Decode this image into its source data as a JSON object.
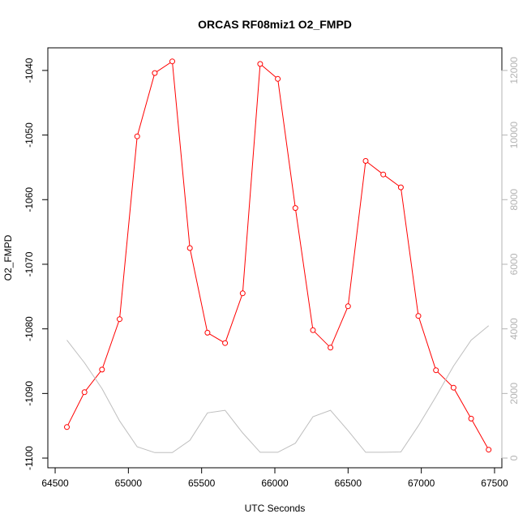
{
  "chart_data": {
    "type": "line",
    "title": "ORCAS RF08miz1 O2_FMPD",
    "xlabel": "UTC Seconds",
    "ylabel": "O2_FMPD",
    "y2label": "",
    "xlim": [
      64450,
      67550
    ],
    "ylim": [
      -1101.5,
      -1036.5
    ],
    "y2lim": [
      -300,
      12700
    ],
    "xticks": [
      64500,
      65000,
      65500,
      66000,
      66500,
      67000,
      67500
    ],
    "xtick_labels": [
      "64500",
      "65000",
      "65500",
      "66000",
      "66500",
      "67000",
      "67500"
    ],
    "yticks": [
      -1100,
      -1090,
      -1080,
      -1070,
      -1060,
      -1050,
      -1040
    ],
    "ytick_labels": [
      "-1100",
      "-1090",
      "-1080",
      "-1070",
      "-1060",
      "-1050",
      "-1040"
    ],
    "y2ticks": [
      0,
      2000,
      4000,
      6000,
      8000,
      10000,
      12000
    ],
    "y2tick_labels": [
      "0",
      "2000",
      "4000",
      "6000",
      "8000",
      "10000",
      "12000"
    ],
    "grid": false,
    "legend": "none",
    "series": [
      {
        "axis": "left",
        "color": "#ff0000",
        "marker": "open-circle",
        "x": [
          64580,
          64700,
          64820,
          64940,
          65060,
          65180,
          65300,
          65420,
          65540,
          65660,
          65780,
          65900,
          66020,
          66140,
          66260,
          66380,
          66500,
          66620,
          66740,
          66860,
          66980,
          67100,
          67220,
          67340,
          67460
        ],
        "values": [
          -1095.2,
          -1089.8,
          -1086.3,
          -1078.5,
          -1050.2,
          -1040.4,
          -1038.6,
          -1067.5,
          -1080.6,
          -1082.2,
          -1074.5,
          -1039.0,
          -1041.3,
          -1061.3,
          -1080.2,
          -1082.9,
          -1076.5,
          -1054.0,
          -1056.1,
          -1058.1,
          -1078.0,
          -1086.4,
          -1089.1,
          -1093.9,
          -1098.7
        ]
      },
      {
        "axis": "right",
        "color": "#bebebe",
        "marker": "none",
        "x": [
          64580,
          64700,
          64820,
          64940,
          65060,
          65180,
          65300,
          65420,
          65540,
          65660,
          65780,
          65900,
          66020,
          66140,
          66260,
          66380,
          66500,
          66620,
          66740,
          66860,
          66980,
          67100,
          67220,
          67340,
          67460
        ],
        "values": [
          3650,
          2950,
          2150,
          1150,
          350,
          170,
          170,
          550,
          1400,
          1480,
          780,
          180,
          180,
          460,
          1280,
          1480,
          850,
          180,
          180,
          190,
          1000,
          1900,
          2850,
          3650,
          4100
        ]
      }
    ]
  }
}
